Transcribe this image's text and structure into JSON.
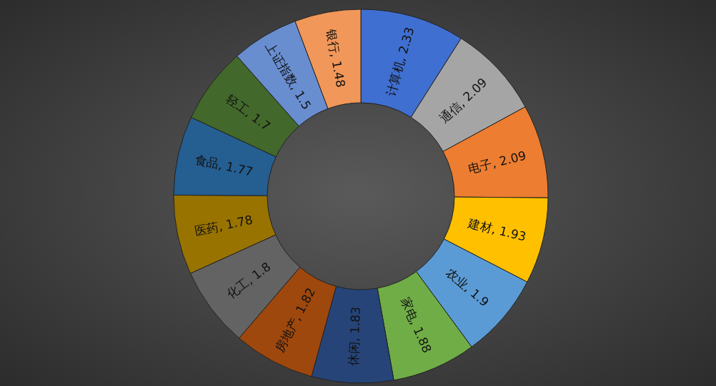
{
  "chart_data": {
    "type": "donut",
    "categories": [
      "计算机",
      "通信",
      "电子",
      "建材",
      "农业",
      "家电",
      "休闲",
      "房地产",
      "化工",
      "医药",
      "食品",
      "轻工",
      "上证指数",
      "银行"
    ],
    "values": [
      2.33,
      2.09,
      2.09,
      1.93,
      1.9,
      1.88,
      1.83,
      1.82,
      1.8,
      1.78,
      1.77,
      1.7,
      1.5,
      1.48
    ],
    "value_labels": [
      ", 2.33",
      ", 2.09",
      ", 2.09",
      ", 1.93",
      ", 1.9",
      ", 1.88",
      ", 1.83",
      ", 1.82",
      ", 1.8",
      ", 1.78",
      ", 1.77",
      ", 1.7",
      ", 1.5",
      ", 1.48"
    ],
    "colors": [
      "#3f6fd0",
      "#a5a5a5",
      "#ed7d31",
      "#ffc000",
      "#5b9bd5",
      "#70ad47",
      "#264478",
      "#9e480e",
      "#636363",
      "#997300",
      "#255e91",
      "#43682b",
      "#698ed0",
      "#f1975a"
    ],
    "legend": false
  }
}
